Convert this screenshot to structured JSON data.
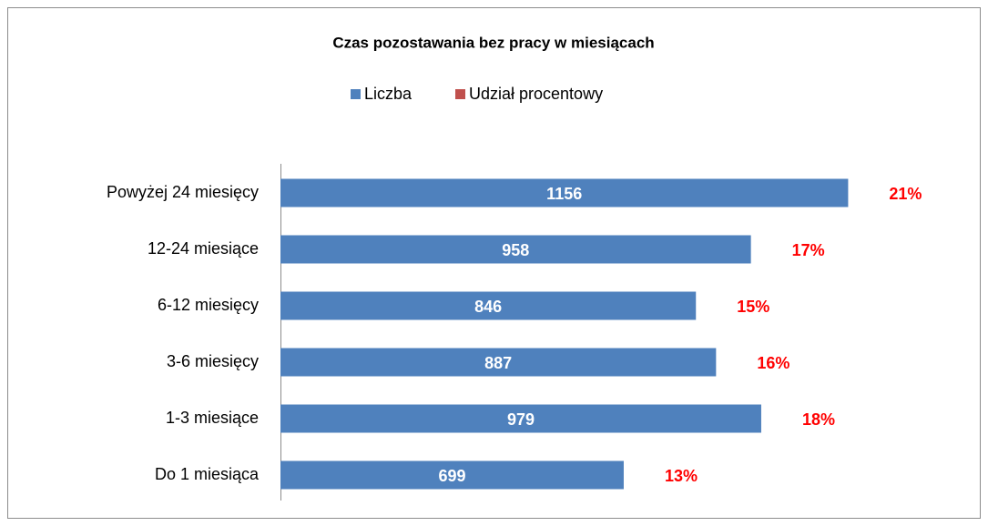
{
  "chart_data": {
    "type": "bar",
    "orientation": "horizontal",
    "title": "Czas pozostawania  bez pracy w miesiącach",
    "categories": [
      "Powyżej 24 miesięcy",
      "12-24 miesiące",
      "6-12 miesięcy",
      "3-6 miesięcy",
      "1-3 miesiące",
      "Do 1 miesiąca"
    ],
    "series": [
      {
        "name": "Liczba",
        "color": "#4f81bd",
        "values": [
          1156,
          958,
          846,
          887,
          979,
          699
        ]
      },
      {
        "name": "Udział procentowy",
        "color": "#c0504d",
        "values": [
          21,
          17,
          15,
          16,
          18,
          13
        ],
        "value_labels": [
          "21%",
          "17%",
          "15%",
          "16%",
          "18%",
          "13%"
        ]
      }
    ],
    "xlim": [
      0,
      1400
    ]
  }
}
